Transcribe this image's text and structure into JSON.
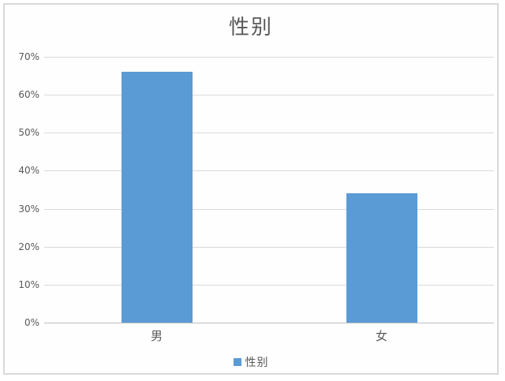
{
  "chart_data": {
    "type": "bar",
    "title": "性别",
    "categories": [
      "男",
      "女"
    ],
    "series": [
      {
        "name": "性别",
        "values": [
          66,
          34
        ]
      }
    ],
    "ylim": [
      0,
      70
    ],
    "ytick_step": 10,
    "ytick_labels": [
      "0%",
      "10%",
      "20%",
      "30%",
      "40%",
      "50%",
      "60%",
      "70%"
    ],
    "grid": true,
    "legend_position": "bottom",
    "legend_label": "性别",
    "xlabel": "",
    "ylabel": ""
  },
  "colors": {
    "bar_fill": "#5B9BD5",
    "gridline": "#d9d9d9",
    "axis_line": "#bfbfbf",
    "text": "#595959",
    "frame_border": "#d9d9d9",
    "background": "#ffffff"
  }
}
